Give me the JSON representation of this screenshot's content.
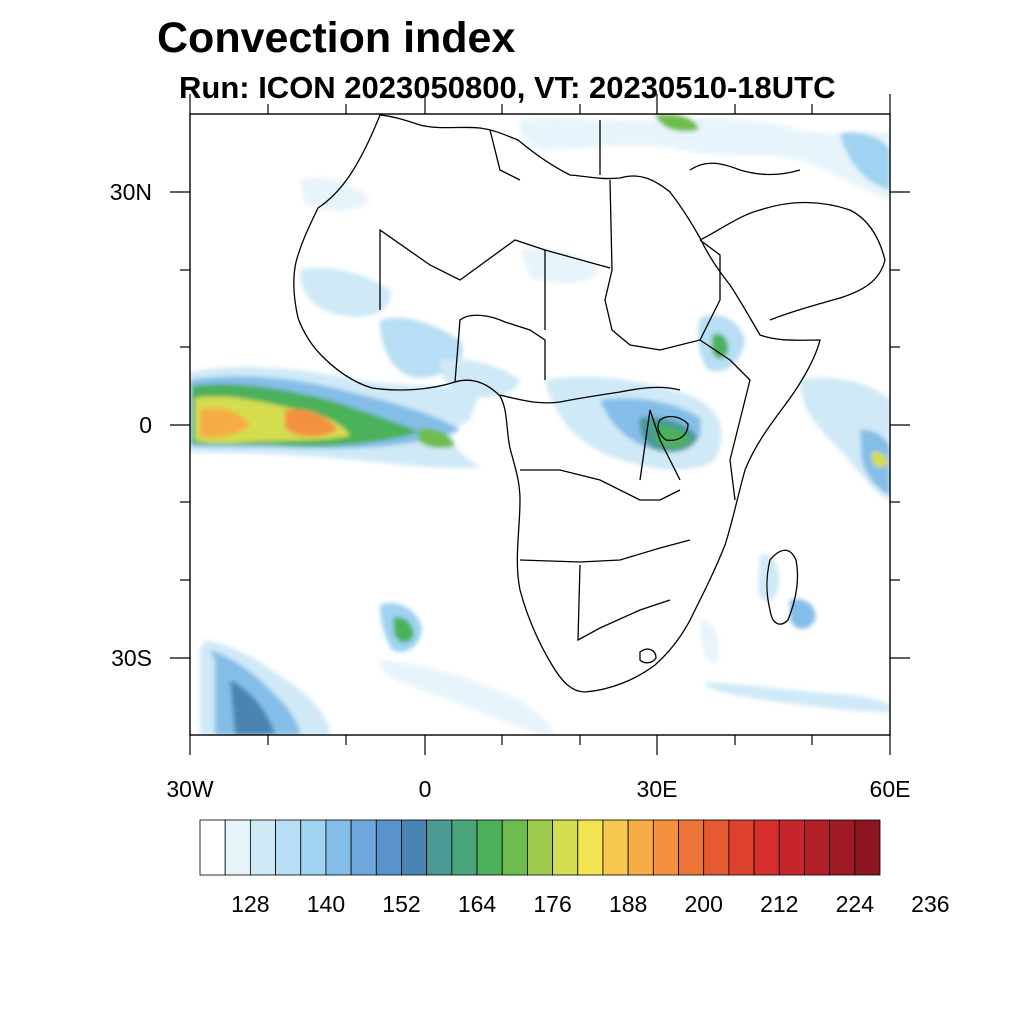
{
  "title": "Convection index",
  "subtitle": "Run: ICON 2023050800,  VT: 20230510-18UTC",
  "map": {
    "lat_labels": [
      "30N",
      "0",
      "30S"
    ],
    "lon_labels": [
      "30W",
      "0",
      "30E",
      "60E"
    ],
    "extent": {
      "lon_min": -30,
      "lon_max": 60,
      "lat_min": -40,
      "lat_max": 40
    }
  },
  "colorbar": {
    "labels": [
      "128",
      "140",
      "152",
      "164",
      "176",
      "188",
      "200",
      "212",
      "224",
      "236"
    ],
    "colors": [
      "#ffffff",
      "#e8f4fb",
      "#cfe9f7",
      "#b7def4",
      "#9fd3f1",
      "#84bde8",
      "#6fa9dc",
      "#5893cc",
      "#4a84b3",
      "#4a9b96",
      "#4aa57a",
      "#4cb15a",
      "#6fbc4e",
      "#9fcc4e",
      "#d4dd4f",
      "#f4e453",
      "#f8c84e",
      "#f7ac45",
      "#f4913f",
      "#ee7538",
      "#e65a32",
      "#de412e",
      "#d42f2d",
      "#c5252b",
      "#b11f29",
      "#a01a25",
      "#8c1620"
    ]
  }
}
